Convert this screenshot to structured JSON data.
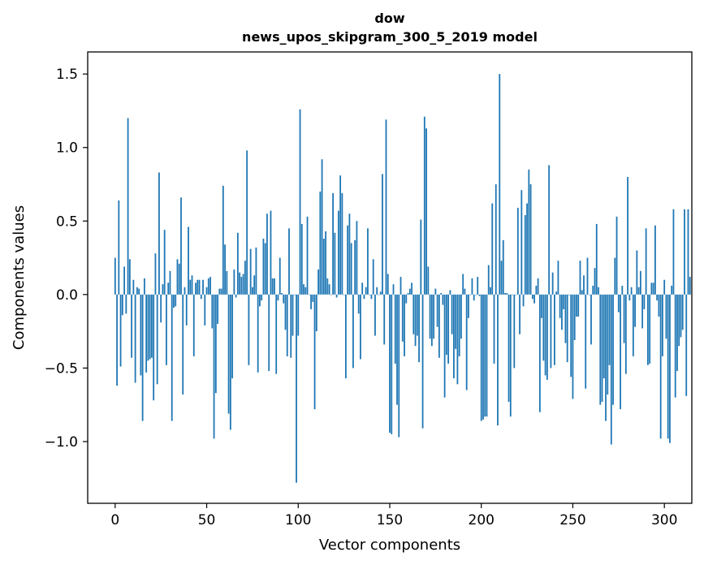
{
  "chart_data": {
    "type": "bar",
    "title_line1": "dow",
    "title_line2": "news_upos_skipgram_300_5_2019 model",
    "xlabel": "Vector components",
    "ylabel": "Components values",
    "xlim": [
      -15,
      315
    ],
    "ylim": [
      -1.42,
      1.65
    ],
    "xticks": [
      0,
      50,
      100,
      150,
      200,
      250,
      300
    ],
    "xtick_labels": [
      "0",
      "50",
      "100",
      "150",
      "200",
      "250",
      "300"
    ],
    "yticks": [
      1.5,
      1.0,
      0.5,
      0.0,
      -0.5,
      -1.0
    ],
    "ytick_labels": [
      "1.5",
      "1.0",
      "0.5",
      "0.0",
      "−0.5",
      "−1.0"
    ],
    "bar_color": "#1f77b4",
    "categories_start": 0,
    "values": [
      0.25,
      -0.62,
      0.64,
      -0.49,
      -0.14,
      0.19,
      -0.13,
      1.2,
      0.24,
      -0.43,
      0.1,
      -0.6,
      0.05,
      0.04,
      -0.55,
      -0.86,
      0.11,
      -0.53,
      -0.45,
      -0.44,
      -0.43,
      -0.72,
      0.28,
      -0.61,
      0.83,
      -0.19,
      0.07,
      0.44,
      -0.48,
      0.08,
      0.16,
      -0.86,
      -0.09,
      -0.08,
      0.24,
      0.21,
      0.66,
      -0.68,
      0.05,
      -0.21,
      0.46,
      0.1,
      0.13,
      -0.42,
      0.08,
      0.1,
      0.1,
      -0.03,
      0.1,
      -0.21,
      0.05,
      0.11,
      0.12,
      -0.23,
      -0.98,
      -0.67,
      -0.2,
      0.04,
      0.04,
      0.74,
      0.34,
      0.16,
      -0.81,
      -0.92,
      -0.57,
      0.17,
      -0.02,
      0.42,
      0.15,
      0.12,
      0.14,
      0.23,
      0.98,
      -0.48,
      0.31,
      0.05,
      0.13,
      0.32,
      -0.53,
      -0.08,
      -0.04,
      0.38,
      0.35,
      0.55,
      -0.52,
      0.57,
      0.11,
      0.11,
      -0.54,
      -0.04,
      0.25,
      0.01,
      -0.06,
      -0.24,
      -0.42,
      0.45,
      -0.43,
      -0.28,
      0.0,
      -1.28,
      -0.28,
      1.26,
      0.48,
      0.07,
      0.05,
      0.53,
      0.0,
      -0.1,
      -0.05,
      -0.78,
      -0.25,
      0.17,
      0.7,
      0.92,
      0.38,
      0.43,
      0.11,
      0.07,
      0.0,
      0.69,
      0.42,
      -0.02,
      0.57,
      0.81,
      0.69,
      0.0,
      -0.57,
      0.47,
      0.55,
      0.35,
      -0.5,
      0.37,
      0.5,
      -0.13,
      -0.44,
      0.08,
      -0.03,
      0.05,
      0.45,
      0.0,
      -0.03,
      0.24,
      -0.28,
      0.05,
      0.0,
      0.02,
      0.82,
      -0.34,
      1.19,
      0.14,
      -0.94,
      -0.95,
      0.07,
      -0.47,
      -0.75,
      -0.97,
      0.12,
      -0.32,
      -0.42,
      -0.06,
      0.01,
      0.04,
      0.08,
      -0.27,
      -0.35,
      -0.28,
      -0.46,
      0.51,
      -0.91,
      1.21,
      1.13,
      0.19,
      -0.3,
      -0.35,
      -0.3,
      0.04,
      -0.22,
      -0.43,
      0.01,
      -0.07,
      -0.7,
      -0.41,
      -0.47,
      0.03,
      -0.27,
      -0.57,
      -0.37,
      -0.61,
      -0.42,
      -0.3,
      0.14,
      0.04,
      -0.65,
      -0.16,
      0.0,
      0.11,
      -0.04,
      0.0,
      0.12,
      -0.01,
      -0.86,
      -0.85,
      -0.83,
      -0.83,
      0.2,
      0.05,
      0.62,
      -0.47,
      0.75,
      -0.89,
      1.5,
      0.23,
      0.37,
      0.01,
      0.01,
      -0.73,
      -0.83,
      0.0,
      -0.5,
      0.0,
      0.59,
      -0.27,
      0.71,
      -0.08,
      0.54,
      0.62,
      0.85,
      0.75,
      -0.03,
      -0.06,
      0.06,
      0.11,
      -0.8,
      -0.16,
      -0.45,
      -0.55,
      -0.58,
      0.88,
      -0.5,
      0.15,
      -0.48,
      0.02,
      0.23,
      -0.16,
      -0.24,
      -0.1,
      -0.33,
      -0.46,
      0.0,
      -0.56,
      -0.71,
      -0.31,
      -0.15,
      -0.15,
      0.23,
      0.03,
      0.13,
      -0.64,
      0.25,
      0.0,
      -0.34,
      0.06,
      0.18,
      0.48,
      0.05,
      -0.75,
      -0.73,
      -0.57,
      -0.86,
      -0.68,
      -0.48,
      -1.02,
      -0.75,
      0.25,
      0.53,
      -0.12,
      -0.78,
      0.06,
      -0.33,
      -0.54,
      0.8,
      -0.04,
      0.05,
      -0.42,
      -0.22,
      0.3,
      0.05,
      0.16,
      -0.23,
      -0.1,
      0.45,
      -0.48,
      -0.47,
      0.08,
      0.08,
      0.47,
      -0.04,
      -0.15,
      -0.98,
      -0.42,
      0.1,
      -0.3,
      -0.98,
      -1.01,
      0.06,
      0.58,
      -0.7,
      -0.52,
      -0.35,
      -0.29,
      -0.24,
      0.58,
      -0.69,
      0.58,
      0.12
    ]
  }
}
